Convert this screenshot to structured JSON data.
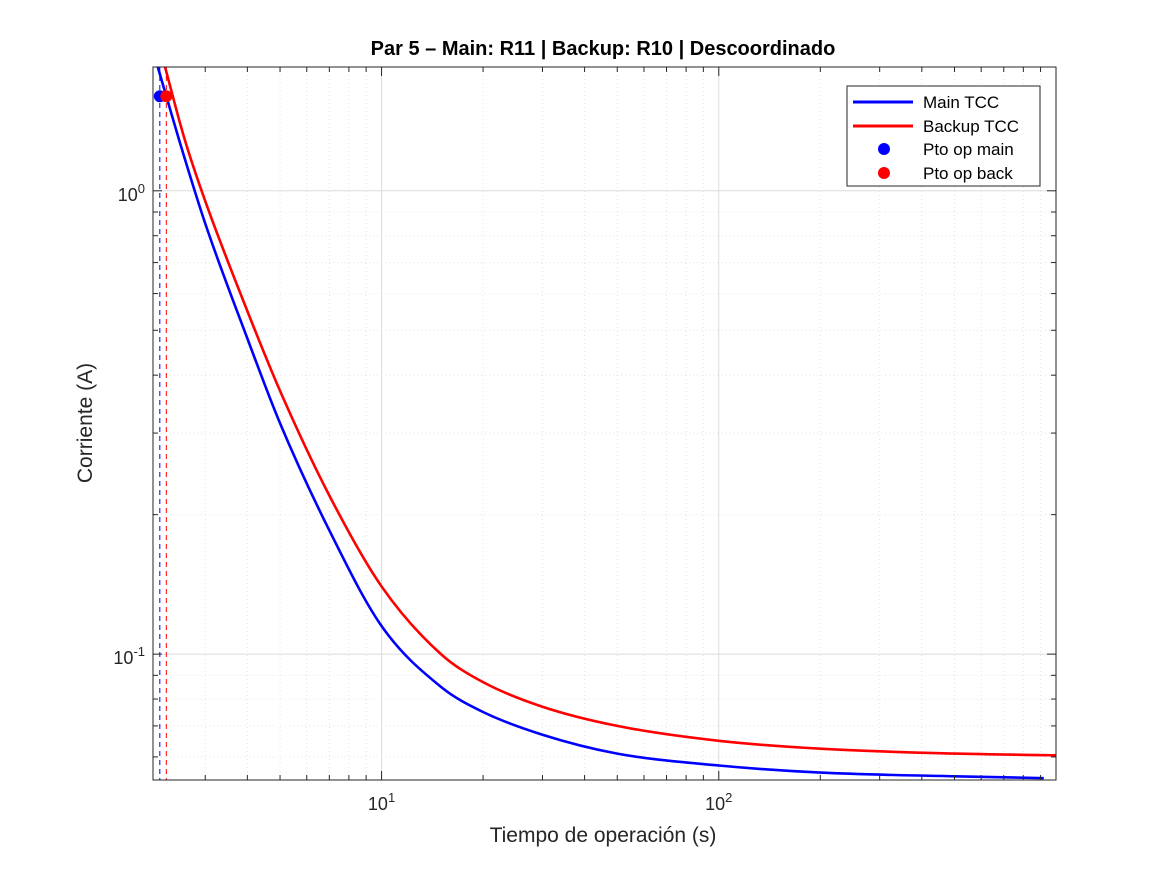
{
  "chart_data": {
    "type": "line",
    "title": "Par 5 – Main: R11 | Backup: R10 | Descoordinado",
    "xlabel": "Tiempo de operación (s)",
    "ylabel": "Corriente (A)",
    "xscale": "log",
    "yscale": "log",
    "xlim": [
      2.1,
      1000
    ],
    "ylim": [
      0.0535,
      1.85
    ],
    "grid": true,
    "minor_grid": true,
    "legend_location": "top-right",
    "x_ticks": [
      {
        "value": 10,
        "base": "10",
        "exp": "1"
      },
      {
        "value": 100,
        "base": "10",
        "exp": "2"
      }
    ],
    "y_ticks": [
      {
        "value": 0.1,
        "base": "10",
        "exp": "-1"
      },
      {
        "value": 1,
        "base": "10",
        "exp": "0"
      }
    ],
    "series": [
      {
        "name": "Main TCC",
        "color": "#0000ff",
        "points": [
          [
            2.17,
            1.85
          ],
          [
            2.5,
            1.3
          ],
          [
            3,
            0.85
          ],
          [
            4,
            0.48
          ],
          [
            5,
            0.315
          ],
          [
            7,
            0.185
          ],
          [
            10,
            0.115
          ],
          [
            15,
            0.085
          ],
          [
            20,
            0.075
          ],
          [
            30,
            0.067
          ],
          [
            50,
            0.061
          ],
          [
            100,
            0.0575
          ],
          [
            200,
            0.0555
          ],
          [
            500,
            0.0545
          ],
          [
            920,
            0.054
          ]
        ]
      },
      {
        "name": "Backup TCC",
        "color": "#ff0000",
        "points": [
          [
            2.28,
            1.85
          ],
          [
            2.6,
            1.3
          ],
          [
            3,
            0.95
          ],
          [
            4,
            0.55
          ],
          [
            5,
            0.37
          ],
          [
            7,
            0.22
          ],
          [
            10,
            0.14
          ],
          [
            15,
            0.1
          ],
          [
            20,
            0.087
          ],
          [
            30,
            0.077
          ],
          [
            50,
            0.07
          ],
          [
            100,
            0.065
          ],
          [
            200,
            0.0625
          ],
          [
            500,
            0.061
          ],
          [
            1000,
            0.0605
          ]
        ]
      },
      {
        "name": "Pto op main",
        "color": "#0000ff",
        "marker": "o",
        "points": [
          [
            2.2,
            1.6
          ]
        ]
      },
      {
        "name": "Pto op back",
        "color": "#ff0000",
        "marker": "o",
        "points": [
          [
            2.3,
            1.6
          ]
        ]
      }
    ],
    "vlines": [
      {
        "x": 2.2,
        "color": "#0000ff",
        "style": "dashed"
      },
      {
        "x": 2.3,
        "color": "#ff0000",
        "style": "dashed"
      }
    ]
  }
}
